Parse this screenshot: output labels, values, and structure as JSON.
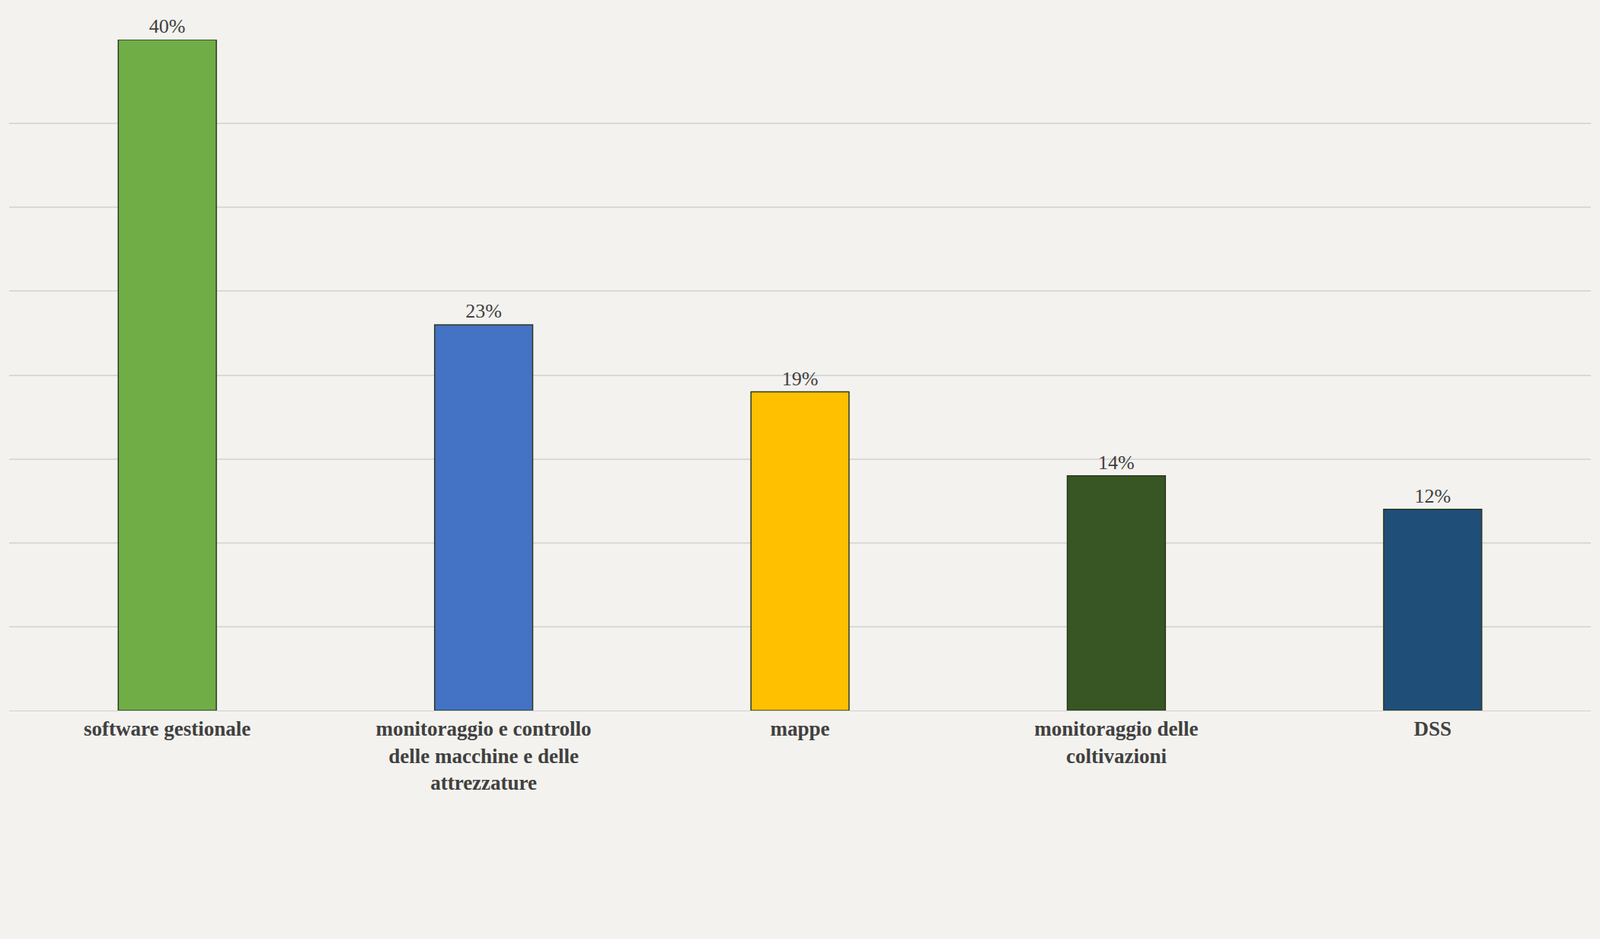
{
  "chart_data": {
    "type": "bar",
    "categories": [
      "software gestionale",
      "monitoraggio e controllo delle macchine e delle attrezzature",
      "mappe",
      "monitoraggio delle coltivazioni",
      "DSS"
    ],
    "values": [
      40,
      23,
      19,
      14,
      12
    ],
    "value_labels": [
      "40%",
      "23%",
      "19%",
      "14%",
      "12%"
    ],
    "colors": [
      "#70ad47",
      "#4472c4",
      "#ffc000",
      "#375623",
      "#1f4e79"
    ],
    "ylim": [
      0,
      40
    ],
    "yticks": [
      0,
      5,
      10,
      15,
      20,
      25,
      30,
      35,
      40
    ],
    "grid": true,
    "data_labels": true,
    "tick_labels": "x"
  }
}
